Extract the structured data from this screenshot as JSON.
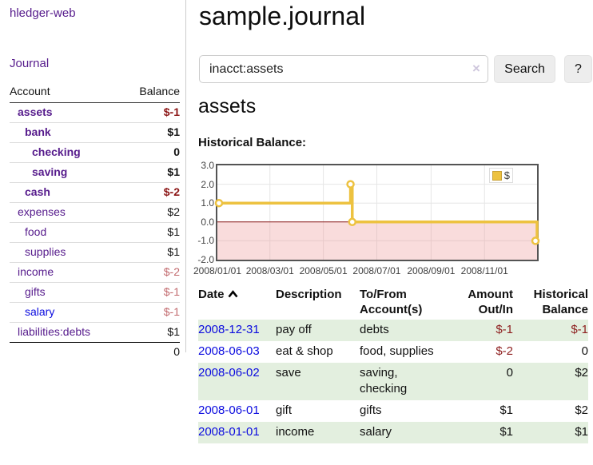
{
  "app": {
    "brand": "hledger-web"
  },
  "colors": {
    "link_purple": "#561b8c",
    "link_blue": "#0b0bdf",
    "negative_strong": "#8b1414",
    "negative_soft": "#c26a6e",
    "register_negative": "#8e1f1f",
    "row_shade_green": "#e3efdf",
    "chart_series_gold": "#edc240",
    "chart_negative_region": "#f8dada",
    "chart_zero_line": "#8b1a1a"
  },
  "sidebar": {
    "journal_link": "Journal",
    "accounts_table": {
      "col_account": "Account",
      "col_balance": "Balance",
      "rows": [
        {
          "name": "assets",
          "balance": "$-1",
          "depth": 1,
          "bold": true,
          "neg": "strong",
          "link": "purple"
        },
        {
          "name": "bank",
          "balance": "$1",
          "depth": 2,
          "bold": true,
          "neg": "none",
          "link": "purple"
        },
        {
          "name": "checking",
          "balance": "0",
          "depth": 3,
          "bold": true,
          "neg": "none",
          "link": "purple"
        },
        {
          "name": "saving",
          "balance": "$1",
          "depth": 3,
          "bold": true,
          "neg": "none",
          "link": "purple"
        },
        {
          "name": "cash",
          "balance": "$-2",
          "depth": 2,
          "bold": true,
          "neg": "strong",
          "link": "purple"
        },
        {
          "name": "expenses",
          "balance": "$2",
          "depth": 1,
          "bold": false,
          "neg": "none",
          "link": "purple"
        },
        {
          "name": "food",
          "balance": "$1",
          "depth": 2,
          "bold": false,
          "neg": "none",
          "link": "purple"
        },
        {
          "name": "supplies",
          "balance": "$1",
          "depth": 2,
          "bold": false,
          "neg": "none",
          "link": "purple"
        },
        {
          "name": "income",
          "balance": "$-2",
          "depth": 1,
          "bold": false,
          "neg": "soft",
          "link": "purple"
        },
        {
          "name": "gifts",
          "balance": "$-1",
          "depth": 2,
          "bold": false,
          "neg": "soft",
          "link": "purple"
        },
        {
          "name": "salary",
          "balance": "$-1",
          "depth": 2,
          "bold": false,
          "neg": "soft",
          "link": "blue"
        },
        {
          "name": "liabilities:debts",
          "balance": "$1",
          "depth": 1,
          "bold": false,
          "neg": "none",
          "link": "purple"
        }
      ],
      "total": "0"
    }
  },
  "main": {
    "title": "sample.journal",
    "search": {
      "value": "inacct:assets",
      "clear_icon": "×",
      "button_label": "Search",
      "help_label": "?"
    },
    "account_heading": "assets",
    "chart_label": "Historical Balance:",
    "register": {
      "columns": {
        "date": "Date",
        "description": "Description",
        "accounts": "To/From Account(s)",
        "amount": "Amount Out/In",
        "balance": "Historical Balance"
      },
      "sort": "Date ascending",
      "rows": [
        {
          "date": "2008-12-31",
          "description": "pay off",
          "accounts": "debts",
          "amount": "$-1",
          "balance": "$-1",
          "amount_neg": true,
          "balance_neg": true,
          "shaded": true
        },
        {
          "date": "2008-06-03",
          "description": "eat & shop",
          "accounts": "food, supplies",
          "amount": "$-2",
          "balance": "0",
          "amount_neg": true,
          "balance_neg": false,
          "shaded": false
        },
        {
          "date": "2008-06-02",
          "description": "save",
          "accounts": "saving, checking",
          "amount": "0",
          "balance": "$2",
          "amount_neg": false,
          "balance_neg": false,
          "shaded": true
        },
        {
          "date": "2008-06-01",
          "description": "gift",
          "accounts": "gifts",
          "amount": "$1",
          "balance": "$2",
          "amount_neg": false,
          "balance_neg": false,
          "shaded": false
        },
        {
          "date": "2008-01-01",
          "description": "income",
          "accounts": "salary",
          "amount": "$1",
          "balance": "$1",
          "amount_neg": false,
          "balance_neg": false,
          "shaded": true
        }
      ]
    }
  },
  "chart_data": {
    "type": "line",
    "title": "Historical Balance:",
    "x_ticks": [
      "2008/01/01",
      "2008/03/01",
      "2008/05/01",
      "2008/07/01",
      "2008/09/01",
      "2008/11/01"
    ],
    "y_ticks": [
      3.0,
      2.0,
      1.0,
      0.0,
      -1.0,
      -2.0
    ],
    "xrange": [
      "2008-01-01",
      "2008-12-31"
    ],
    "yrange": [
      -2,
      3
    ],
    "grid": true,
    "legend": {
      "label": "$",
      "position": "top-right"
    },
    "series": [
      {
        "name": "$",
        "type": "step-line",
        "color": "#edc240",
        "points": [
          {
            "x": "2008-01-01",
            "y": 1
          },
          {
            "x": "2008-06-01",
            "y": 2
          },
          {
            "x": "2008-06-03",
            "y": 0
          },
          {
            "x": "2008-12-31",
            "y": -1
          }
        ]
      }
    ],
    "negative_region_fill": "#f8dada",
    "zero_line_color": "#8b1a1a"
  }
}
